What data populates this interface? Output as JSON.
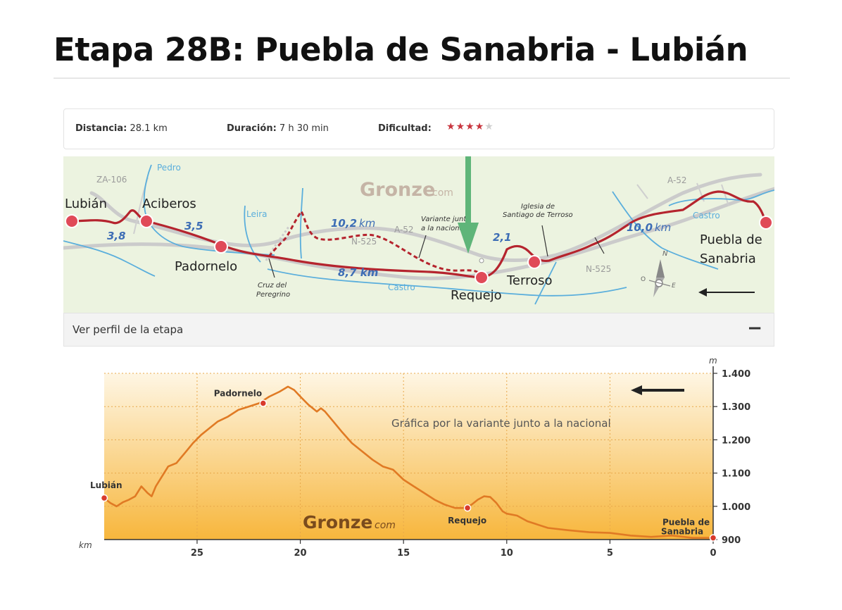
{
  "page_title": "Etapa 28B: Puebla de Sanabria - Lubián",
  "info": {
    "distance_label": "Distancia:",
    "distance_value": "28.1 km",
    "duration_label": "Duración:",
    "duration_value": "7 h 30 min",
    "difficulty_label": "Dificultad:",
    "difficulty_stars": 4,
    "difficulty_max": 5,
    "star_color": "#c8353e"
  },
  "map": {
    "brand": "Gronze",
    "brand_suffix": "com",
    "towns": {
      "lubian": "Lubián",
      "aciberos": "Aciberos",
      "padornelo": "Padornelo",
      "requejo": "Requejo",
      "terroso": "Terroso",
      "puebla_1": "Puebla de",
      "puebla_2": "Sanabria"
    },
    "distances": {
      "d1": "3,8",
      "d2": "3,5",
      "d3": "8,7 km",
      "d4_num": "10,2",
      "d4_unit": "km",
      "d5": "2,1",
      "d6_num": "10,0",
      "d6_unit": "km"
    },
    "roads": {
      "za106": "ZA-106",
      "a52_left": "A-52",
      "n525_mid": "N-525",
      "a52_right": "A-52",
      "n525_right": "N-525"
    },
    "rivers": {
      "pedro": "Pedro",
      "leira": "Leira",
      "castro_mid": "Castro",
      "castro_right": "Castro"
    },
    "notes": {
      "variante_1": "Variante junto",
      "variante_2": "a la nacional",
      "iglesia_1": "Iglesia de",
      "iglesia_2": "Santiago de Terroso",
      "cruz_1": "Cruz del",
      "cruz_2": "Peregrino"
    },
    "compass": {
      "n": "N",
      "o": "O",
      "e": "E"
    },
    "colors": {
      "route": "#b5242e",
      "river": "#5aaedc",
      "road": "#c9c9c9",
      "land": "#ecf3e0",
      "arrow_annotation": "#5fb579"
    }
  },
  "profile_header": {
    "label": "Ver perfil de la etapa",
    "toggle": "−"
  },
  "chart_data": {
    "type": "area",
    "title": "",
    "annotation": "Gráfica por la variante junto a la nacional",
    "brand": "Gronze",
    "brand_suffix": "com",
    "xlabel": "km",
    "ylabel": "m",
    "xlim": [
      29.5,
      0
    ],
    "ylim": [
      900,
      1400
    ],
    "x_ticks": [
      25,
      20,
      15,
      10,
      5,
      0
    ],
    "y_ticks": [
      900,
      1000,
      1100,
      1200,
      1300,
      1400
    ],
    "y_tick_labels": [
      "900",
      "1.000",
      "1.100",
      "1.200",
      "1.300",
      "1.400"
    ],
    "grid": true,
    "line_color": "#e07a24",
    "series": [
      {
        "x": [
          29.5,
          29.2,
          28.9,
          28.6,
          28.3,
          28.0,
          27.7,
          27.4,
          27.2,
          27.0,
          26.7,
          26.4,
          26.0,
          25.6,
          25.2,
          24.8,
          24.4,
          24.0,
          23.5,
          23.0,
          22.5,
          22.0,
          21.5,
          21.0,
          20.6,
          20.3,
          20.0,
          19.6,
          19.2,
          19.0,
          18.8,
          18.4,
          18.0,
          17.5,
          17.0,
          16.5,
          16.0,
          15.5,
          15.0,
          14.5,
          14.0,
          13.5,
          13.0,
          12.5,
          12.0,
          11.7,
          11.4,
          11.1,
          10.8,
          10.5,
          10.2,
          10.0,
          9.5,
          9.0,
          8.5,
          8.0,
          7.0,
          6.0,
          5.0,
          4.0,
          3.0,
          2.0,
          1.0,
          0.0
        ],
        "y": [
          1025,
          1010,
          1000,
          1012,
          1020,
          1030,
          1060,
          1040,
          1030,
          1060,
          1090,
          1120,
          1130,
          1160,
          1190,
          1215,
          1235,
          1255,
          1270,
          1290,
          1300,
          1310,
          1330,
          1345,
          1360,
          1350,
          1330,
          1305,
          1285,
          1295,
          1285,
          1255,
          1225,
          1190,
          1165,
          1140,
          1120,
          1110,
          1080,
          1060,
          1040,
          1020,
          1005,
          995,
          995,
          1005,
          1020,
          1030,
          1028,
          1010,
          985,
          978,
          972,
          955,
          945,
          935,
          928,
          922,
          920,
          912,
          908,
          912,
          905,
          905
        ]
      }
    ],
    "points": [
      {
        "label": "Lubián",
        "x": 29.5,
        "y": 1025
      },
      {
        "label": "Padornelo",
        "x": 21.8,
        "y": 1310
      },
      {
        "label": "Requejo",
        "x": 11.9,
        "y": 995
      },
      {
        "label": "Puebla de Sanabria",
        "x": 0.0,
        "y": 905
      }
    ]
  }
}
